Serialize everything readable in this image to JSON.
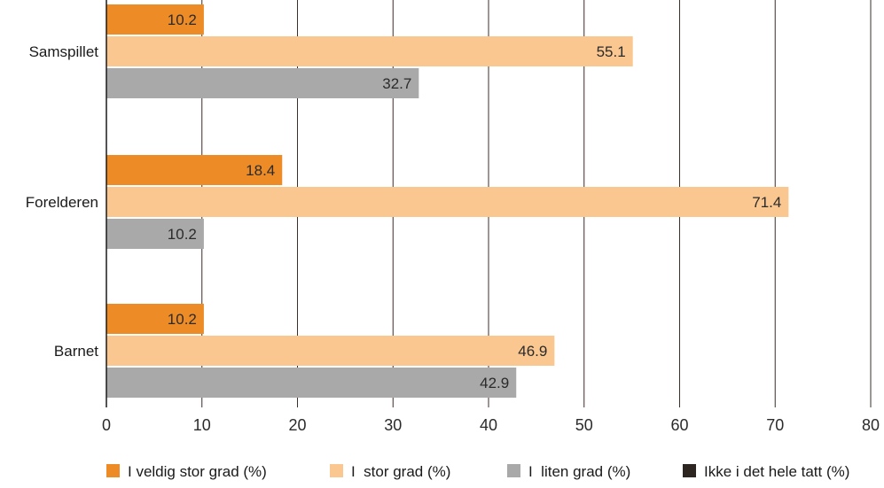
{
  "chart_data": {
    "type": "bar",
    "orientation": "horizontal",
    "categories": [
      "Samspillet",
      "Forelderen",
      "Barnet"
    ],
    "series": [
      {
        "name": "I veldig stor grad (%)",
        "color": "#ed8b26",
        "values": [
          10.2,
          18.4,
          10.2
        ]
      },
      {
        "name": "I  stor grad (%)",
        "color": "#f9c78f",
        "values": [
          55.1,
          71.4,
          46.9
        ]
      },
      {
        "name": "I  liten grad (%)",
        "color": "#a9a9a9",
        "values": [
          32.7,
          10.2,
          42.9
        ]
      },
      {
        "name": "Ikke i det hele tatt (%)",
        "color": "#2d2520",
        "values": [
          null,
          null,
          null
        ]
      }
    ],
    "value_labels": [
      [
        "10.2",
        "18.4",
        "10.2"
      ],
      [
        "55.1",
        "71.4",
        "46.9"
      ],
      [
        "32.7",
        "10.2",
        "42.9"
      ],
      [
        "",
        "",
        ""
      ]
    ],
    "xlim": [
      0,
      80
    ],
    "xticks": [
      "0",
      "10",
      "20",
      "30",
      "40",
      "50",
      "60",
      "70",
      "80"
    ],
    "grid": "vertical",
    "legend_position": "bottom",
    "title": "",
    "xlabel": "",
    "ylabel": ""
  },
  "colors": {
    "gridline": "#3a2f2a",
    "axis": "#1a1a1a",
    "text": "#1a1a1a"
  }
}
